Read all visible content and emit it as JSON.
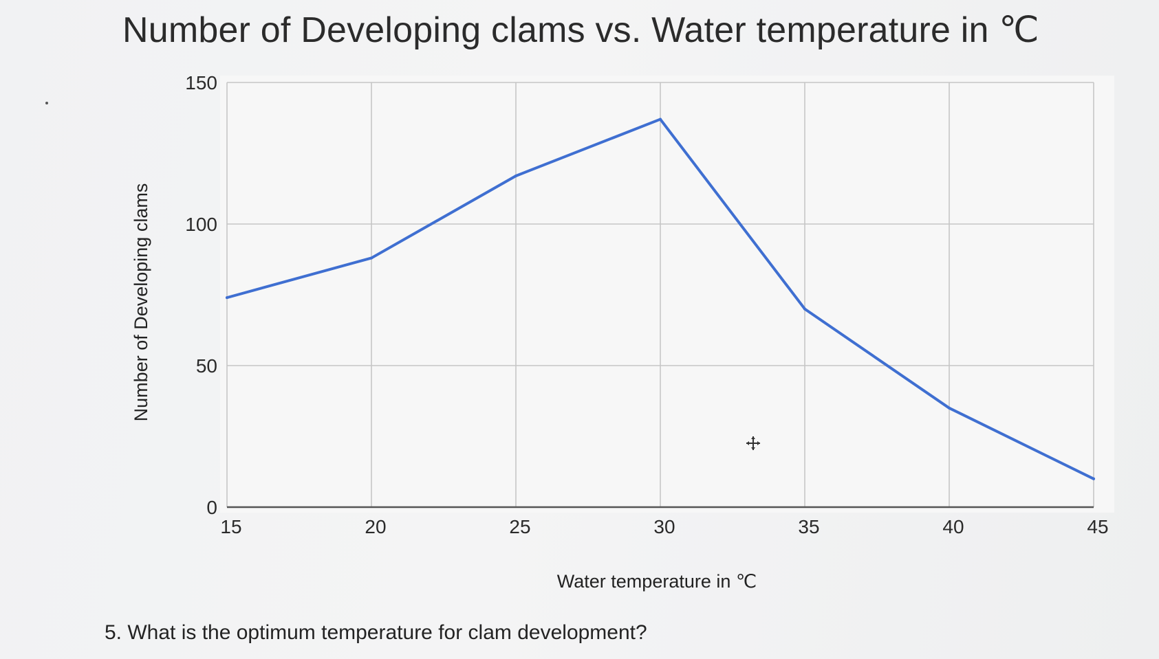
{
  "title": "Number of Developing clams vs. Water temperature in ℃",
  "question": "5. What is the optimum temperature for clam development?",
  "chart_data": {
    "type": "line",
    "title": "Number of Developing clams vs. Water temperature in ℃",
    "xlabel": "Water temperature in ℃",
    "ylabel": "Number of Developing clams",
    "x": [
      15,
      20,
      25,
      30,
      35,
      40,
      45
    ],
    "series": [
      {
        "values": [
          74,
          88,
          117,
          137,
          70,
          35,
          10
        ],
        "color": "#3f6fd1"
      }
    ],
    "xlim": [
      15,
      45
    ],
    "ylim": [
      0,
      150
    ],
    "xticks": [
      "15",
      "20",
      "25",
      "30",
      "35",
      "40",
      "45"
    ],
    "yticks": [
      "0",
      "50",
      "100",
      "150"
    ],
    "grid": true,
    "legend": "none"
  }
}
